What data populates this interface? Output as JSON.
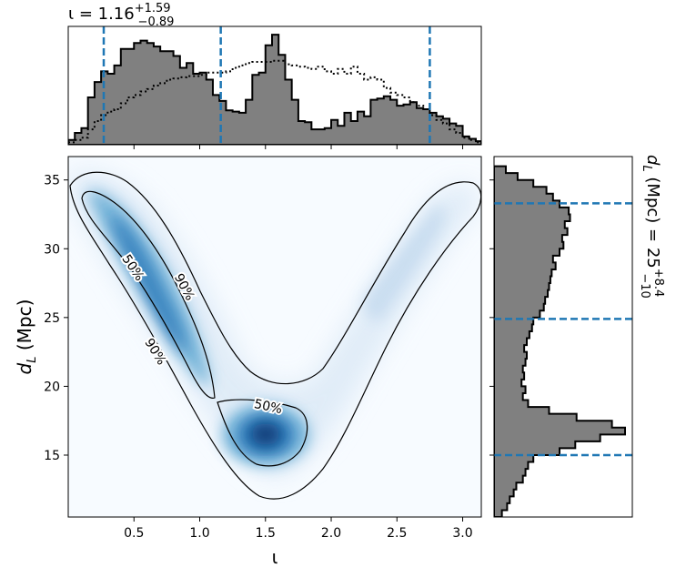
{
  "chart_data": [
    {
      "type": "heatmap",
      "name": "joint-posterior",
      "xlabel": "ι",
      "ylabel_main": "d",
      "ylabel_sub": "L",
      "ylabel_unit": " (Mpc)",
      "xlim": [
        0.0,
        3.1416
      ],
      "ylim": [
        10.5,
        36.7
      ],
      "xticks": [
        "0.5",
        "1.0",
        "1.5",
        "2.0",
        "2.5",
        "3.0"
      ],
      "xtick_values": [
        0.5,
        1.0,
        1.5,
        2.0,
        2.5,
        3.0
      ],
      "yticks": [
        "15",
        "20",
        "25",
        "30",
        "35"
      ],
      "ytick_values": [
        15,
        20,
        25,
        30,
        35
      ],
      "colormap": "Blues",
      "contour_labels": [
        {
          "text": "50%",
          "x": 0.49,
          "y": 28.6,
          "angle": 56
        },
        {
          "text": "90%",
          "x": 0.88,
          "y": 27.2,
          "angle": 62
        },
        {
          "text": "90%",
          "x": 0.66,
          "y": 22.5,
          "angle": 58
        },
        {
          "text": "50%",
          "x": 1.52,
          "y": 18.5,
          "angle": 12
        }
      ]
    },
    {
      "type": "bar",
      "name": "iota-marginal",
      "title_main": "ι = 1.16",
      "title_sup": "+1.59",
      "title_sub": "−0.89",
      "xlim": [
        0.0,
        3.1416
      ],
      "ylim": [
        0,
        1.0
      ],
      "median": 1.16,
      "quantile_lines": [
        0.27,
        1.16,
        2.75
      ],
      "bin_edges": [
        0.0,
        0.05,
        0.1,
        0.15,
        0.2,
        0.25,
        0.3,
        0.35,
        0.4,
        0.45,
        0.5,
        0.55,
        0.6,
        0.65,
        0.7,
        0.75,
        0.8,
        0.85,
        0.9,
        0.95,
        1.0,
        1.05,
        1.1,
        1.15,
        1.2,
        1.25,
        1.3,
        1.35,
        1.4,
        1.45,
        1.5,
        1.55,
        1.6,
        1.65,
        1.7,
        1.75,
        1.8,
        1.85,
        1.9,
        1.95,
        2.0,
        2.05,
        2.1,
        2.15,
        2.2,
        2.25,
        2.3,
        2.35,
        2.4,
        2.45,
        2.5,
        2.55,
        2.6,
        2.65,
        2.7,
        2.75,
        2.8,
        2.85,
        2.9,
        2.95,
        3.0,
        3.05,
        3.1,
        3.1416
      ],
      "values": [
        0.04,
        0.1,
        0.14,
        0.4,
        0.53,
        0.62,
        0.6,
        0.67,
        0.81,
        0.81,
        0.86,
        0.88,
        0.86,
        0.83,
        0.79,
        0.79,
        0.75,
        0.65,
        0.69,
        0.6,
        0.61,
        0.55,
        0.42,
        0.37,
        0.29,
        0.28,
        0.27,
        0.38,
        0.59,
        0.61,
        0.84,
        0.93,
        0.76,
        0.55,
        0.38,
        0.2,
        0.19,
        0.13,
        0.13,
        0.14,
        0.21,
        0.16,
        0.27,
        0.2,
        0.28,
        0.24,
        0.38,
        0.39,
        0.41,
        0.38,
        0.33,
        0.34,
        0.36,
        0.31,
        0.3,
        0.27,
        0.24,
        0.22,
        0.18,
        0.16,
        0.07,
        0.05,
        0.03
      ],
      "prior_values": [
        0.02,
        0.04,
        0.06,
        0.13,
        0.2,
        0.25,
        0.28,
        0.3,
        0.35,
        0.4,
        0.42,
        0.45,
        0.47,
        0.5,
        0.52,
        0.55,
        0.56,
        0.57,
        0.58,
        0.58,
        0.59,
        0.61,
        0.61,
        0.61,
        0.62,
        0.65,
        0.67,
        0.69,
        0.7,
        0.7,
        0.7,
        0.71,
        0.71,
        0.68,
        0.67,
        0.66,
        0.65,
        0.64,
        0.66,
        0.62,
        0.6,
        0.64,
        0.6,
        0.66,
        0.6,
        0.55,
        0.57,
        0.55,
        0.48,
        0.44,
        0.42,
        0.4,
        0.36,
        0.33,
        0.3,
        0.25,
        0.21,
        0.18,
        0.13,
        0.1,
        0.06,
        0.04,
        0.02
      ]
    },
    {
      "type": "bar",
      "name": "dl-marginal",
      "title_main": "d",
      "title_sub": "L",
      "title_rest": " (Mpc) = 25",
      "title_sup": "+8.4",
      "title_sub2": "−10",
      "ylim": [
        10.5,
        36.7
      ],
      "quantile_lines": [
        15.0,
        24.9,
        33.3
      ],
      "bin_edges": [
        10.5,
        11.0,
        11.5,
        12.0,
        12.5,
        13.0,
        13.5,
        14.0,
        14.5,
        15.0,
        15.5,
        16.0,
        16.5,
        17.0,
        17.5,
        18.0,
        18.5,
        19.0,
        19.5,
        20.0,
        20.5,
        21.0,
        21.5,
        22.0,
        22.5,
        23.0,
        23.5,
        24.0,
        24.5,
        25.0,
        25.5,
        26.0,
        26.5,
        27.0,
        27.5,
        28.0,
        28.5,
        29.0,
        29.5,
        30.0,
        30.5,
        31.0,
        31.5,
        32.0,
        32.5,
        33.0,
        33.5,
        34.0,
        34.5,
        35.0,
        35.5,
        36.0
      ],
      "values": [
        0.06,
        0.1,
        0.12,
        0.15,
        0.17,
        0.22,
        0.24,
        0.26,
        0.3,
        0.5,
        0.62,
        0.81,
        1.0,
        0.9,
        0.63,
        0.42,
        0.26,
        0.22,
        0.24,
        0.21,
        0.23,
        0.22,
        0.24,
        0.25,
        0.23,
        0.25,
        0.27,
        0.29,
        0.3,
        0.35,
        0.38,
        0.39,
        0.41,
        0.42,
        0.43,
        0.44,
        0.47,
        0.45,
        0.5,
        0.53,
        0.52,
        0.56,
        0.54,
        0.58,
        0.57,
        0.5,
        0.45,
        0.4,
        0.3,
        0.18,
        0.09
      ]
    }
  ]
}
